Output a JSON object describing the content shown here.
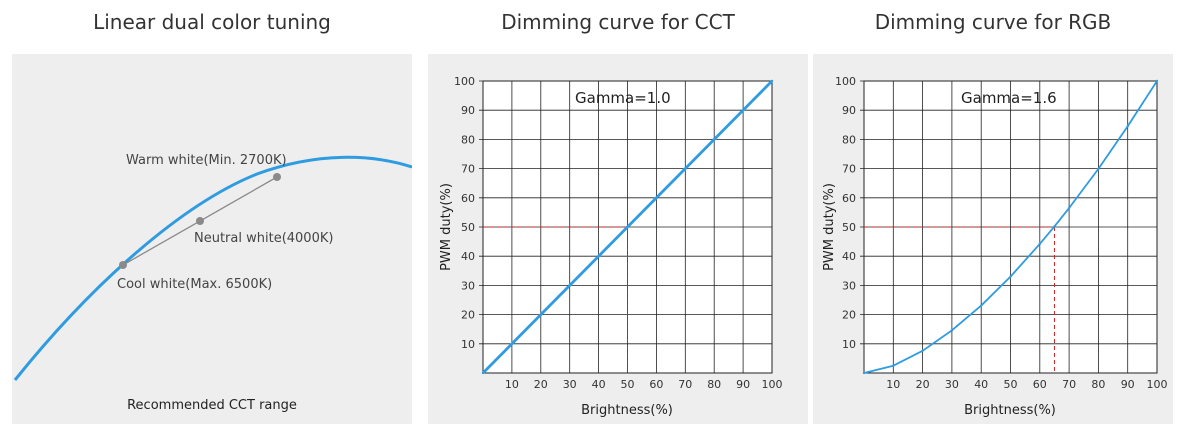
{
  "titles": [
    "Linear dual color tuning",
    "Dimming curve for CCT",
    "Dimming curve for RGB"
  ],
  "colors": {
    "curve": "#2f9be0",
    "guide": "#cc2222",
    "point": "#888888",
    "grid": "#222222",
    "panel": "#eeeeef"
  },
  "chart_data": [
    {
      "type": "diagram",
      "title": "Linear dual color tuning",
      "curve_label": "",
      "points": [
        {
          "label": "Warm white(Min. 2700K)"
        },
        {
          "label": "Neutral white(4000K)"
        },
        {
          "label": "Cool white(Max. 6500K)"
        }
      ],
      "caption": "Recommended CCT range"
    },
    {
      "type": "line",
      "title": "Dimming curve for CCT",
      "annotation": "Gamma=1.0",
      "gamma": 1.0,
      "xlabel": "Brightness(%)",
      "ylabel": "PWM duty(%)",
      "xlim": [
        0,
        100
      ],
      "ylim": [
        0,
        100
      ],
      "xticks": [
        10,
        20,
        30,
        40,
        50,
        60,
        70,
        80,
        90,
        100
      ],
      "yticks": [
        10,
        20,
        30,
        40,
        50,
        60,
        70,
        80,
        90,
        100
      ],
      "reference": {
        "x": 50,
        "y": 50
      },
      "series": [
        {
          "name": "Gamma=1.0",
          "x": [
            0,
            100
          ],
          "y": [
            0,
            100
          ]
        }
      ]
    },
    {
      "type": "line",
      "title": "Dimming curve for RGB",
      "annotation": "Gamma=1.6",
      "gamma": 1.6,
      "xlabel": "Brightness(%)",
      "ylabel": "PWM duty(%)",
      "xlim": [
        0,
        100
      ],
      "ylim": [
        0,
        100
      ],
      "xticks": [
        10,
        20,
        30,
        40,
        50,
        60,
        70,
        80,
        90,
        100
      ],
      "yticks": [
        10,
        20,
        30,
        40,
        50,
        60,
        70,
        80,
        90,
        100
      ],
      "reference": {
        "x": 65,
        "y": 50
      },
      "series": [
        {
          "name": "Gamma=1.6",
          "x": [
            0,
            10,
            20,
            30,
            40,
            50,
            60,
            65,
            70,
            80,
            90,
            100
          ],
          "y": [
            0,
            2.5,
            7.6,
            14.6,
            23.1,
            33.0,
            44.2,
            50.2,
            56.5,
            69.9,
            84.5,
            100
          ]
        }
      ]
    }
  ]
}
